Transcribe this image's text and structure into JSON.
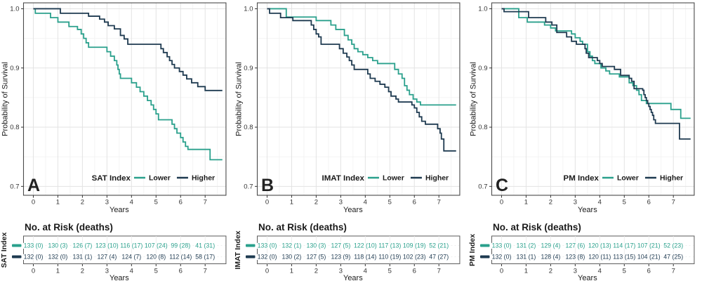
{
  "chart_data": {
    "type": "line",
    "subtype": "kaplan-meier-step",
    "xlabel": "Years",
    "ylabel": "Probability of Survival",
    "risk_table_title": "No. at Risk (deaths)",
    "x_ticks": [
      0,
      1,
      2,
      3,
      4,
      5,
      6,
      7
    ],
    "y_ticks": [
      1.0,
      0.9,
      0.8,
      0.7
    ],
    "y_minor_ticks": [
      0.95,
      0.85,
      0.75
    ],
    "x_minor_ticks": [
      0.5,
      1.5,
      2.5,
      3.5,
      4.5,
      5.5,
      6.5,
      7.5
    ],
    "xlim": [
      -0.4,
      7.85
    ],
    "ylim": [
      0.685,
      1.01
    ],
    "grid": true,
    "legend_position": "bottom-inside",
    "legend_labels": [
      "Lower",
      "Higher"
    ],
    "colors": {
      "lower": "#2aa08c",
      "higher": "#1e3a50",
      "grid_major": "#e3e3e3",
      "grid_minor": "#f1f1f1",
      "panel_border": "#4a4a4a",
      "tick_text": "#333333",
      "title_text": "#1a1a1a",
      "risk_border": "#5a5a5a",
      "risk_grid": "#e9e9e9"
    },
    "panels": [
      {
        "label": "A",
        "index_name": "SAT Index",
        "series": [
          {
            "name": "Lower",
            "color_key": "lower",
            "steps": [
              [
                0,
                1.0
              ],
              [
                0.08,
                0.9925
              ],
              [
                0.7,
                0.985
              ],
              [
                1.0,
                0.9775
              ],
              [
                1.45,
                0.97
              ],
              [
                1.8,
                0.965
              ],
              [
                1.95,
                0.9575
              ],
              [
                2.05,
                0.95
              ],
              [
                2.15,
                0.9425
              ],
              [
                2.25,
                0.935
              ],
              [
                3.0,
                0.9275
              ],
              [
                3.15,
                0.92
              ],
              [
                3.3,
                0.9125
              ],
              [
                3.4,
                0.905
              ],
              [
                3.45,
                0.8975
              ],
              [
                3.5,
                0.89
              ],
              [
                3.55,
                0.8825
              ],
              [
                4.0,
                0.875
              ],
              [
                4.2,
                0.8675
              ],
              [
                4.35,
                0.86
              ],
              [
                4.5,
                0.8525
              ],
              [
                4.65,
                0.845
              ],
              [
                4.8,
                0.8375
              ],
              [
                4.9,
                0.83
              ],
              [
                5.0,
                0.8225
              ],
              [
                5.1,
                0.8125
              ],
              [
                5.65,
                0.805
              ],
              [
                5.75,
                0.7975
              ],
              [
                5.85,
                0.79
              ],
              [
                6.0,
                0.7825
              ],
              [
                6.1,
                0.775
              ],
              [
                6.2,
                0.7675
              ],
              [
                6.3,
                0.7625
              ],
              [
                7.2,
                0.745
              ],
              [
                7.7,
                0.745
              ]
            ]
          },
          {
            "name": "Higher",
            "color_key": "higher",
            "steps": [
              [
                0,
                1.0
              ],
              [
                1.1,
                0.9925
              ],
              [
                2.25,
                0.9875
              ],
              [
                2.7,
                0.9825
              ],
              [
                2.9,
                0.9775
              ],
              [
                3.05,
                0.9715
              ],
              [
                3.3,
                0.966
              ],
              [
                3.55,
                0.955
              ],
              [
                3.7,
                0.949
              ],
              [
                3.85,
                0.94
              ],
              [
                5.2,
                0.9325
              ],
              [
                5.3,
                0.926
              ],
              [
                5.45,
                0.919
              ],
              [
                5.55,
                0.9125
              ],
              [
                5.65,
                0.906
              ],
              [
                5.75,
                0.9
              ],
              [
                5.95,
                0.894
              ],
              [
                6.1,
                0.888
              ],
              [
                6.25,
                0.8815
              ],
              [
                6.45,
                0.875
              ],
              [
                6.7,
                0.8685
              ],
              [
                7.0,
                0.862
              ],
              [
                7.7,
                0.862
              ]
            ]
          }
        ],
        "risk_rows": [
          {
            "name": "Lower",
            "color_key": "lower",
            "values": [
              "133 (0)",
              "130 (3)",
              "126 (7)",
              "123 (10)",
              "116 (17)",
              "107 (24)",
              "99 (28)",
              "41 (31)"
            ]
          },
          {
            "name": "Higher",
            "color_key": "higher",
            "values": [
              "132 (0)",
              "132 (0)",
              "131 (1)",
              "127 (4)",
              "124 (7)",
              "120 (8)",
              "112 (14)",
              "58 (17)"
            ]
          }
        ]
      },
      {
        "label": "B",
        "index_name": "IMAT Index",
        "series": [
          {
            "name": "Lower",
            "color_key": "lower",
            "steps": [
              [
                0,
                1.0
              ],
              [
                0.78,
                0.986
              ],
              [
                2.0,
                0.98
              ],
              [
                2.6,
                0.9725
              ],
              [
                2.8,
                0.965
              ],
              [
                3.15,
                0.955
              ],
              [
                3.3,
                0.9475
              ],
              [
                3.45,
                0.94
              ],
              [
                3.55,
                0.9325
              ],
              [
                3.7,
                0.9275
              ],
              [
                3.9,
                0.9225
              ],
              [
                4.1,
                0.9175
              ],
              [
                4.3,
                0.9125
              ],
              [
                4.5,
                0.9075
              ],
              [
                5.2,
                0.8975
              ],
              [
                5.35,
                0.89
              ],
              [
                5.5,
                0.8825
              ],
              [
                5.6,
                0.87
              ],
              [
                5.7,
                0.8625
              ],
              [
                5.8,
                0.855
              ],
              [
                5.95,
                0.8475
              ],
              [
                6.1,
                0.8425
              ],
              [
                6.25,
                0.8375
              ],
              [
                7.7,
                0.8375
              ]
            ]
          },
          {
            "name": "Higher",
            "color_key": "higher",
            "steps": [
              [
                0,
                1.0
              ],
              [
                0.1,
                0.9925
              ],
              [
                0.55,
                0.985
              ],
              [
                1.05,
                0.98
              ],
              [
                1.8,
                0.9725
              ],
              [
                1.9,
                0.965
              ],
              [
                2.0,
                0.9575
              ],
              [
                2.1,
                0.9525
              ],
              [
                2.2,
                0.94
              ],
              [
                2.95,
                0.9325
              ],
              [
                3.1,
                0.925
              ],
              [
                3.25,
                0.9185
              ],
              [
                3.35,
                0.9125
              ],
              [
                3.45,
                0.905
              ],
              [
                3.55,
                0.8975
              ],
              [
                4.1,
                0.89
              ],
              [
                4.2,
                0.8825
              ],
              [
                4.4,
                0.8775
              ],
              [
                4.6,
                0.8725
              ],
              [
                4.8,
                0.8675
              ],
              [
                4.95,
                0.86
              ],
              [
                5.05,
                0.8525
              ],
              [
                5.25,
                0.8475
              ],
              [
                5.35,
                0.8425
              ],
              [
                5.9,
                0.8375
              ],
              [
                6.0,
                0.8325
              ],
              [
                6.1,
                0.825
              ],
              [
                6.2,
                0.8175
              ],
              [
                6.3,
                0.81
              ],
              [
                6.45,
                0.805
              ],
              [
                6.95,
                0.7975
              ],
              [
                7.05,
                0.79
              ],
              [
                7.1,
                0.78
              ],
              [
                7.2,
                0.76
              ],
              [
                7.7,
                0.76
              ]
            ]
          }
        ],
        "risk_rows": [
          {
            "name": "Lower",
            "color_key": "lower",
            "values": [
              "133 (0)",
              "132 (1)",
              "130 (3)",
              "127 (5)",
              "122 (10)",
              "117 (13)",
              "109 (19)",
              "52 (21)"
            ]
          },
          {
            "name": "Higher",
            "color_key": "higher",
            "values": [
              "132 (0)",
              "130 (2)",
              "127 (5)",
              "123 (9)",
              "118 (14)",
              "110 (19)",
              "102 (23)",
              "47 (27)"
            ]
          }
        ]
      },
      {
        "label": "C",
        "index_name": "PM Index",
        "series": [
          {
            "name": "Lower",
            "color_key": "lower",
            "steps": [
              [
                0,
                1.0
              ],
              [
                0.7,
                0.985
              ],
              [
                1.05,
                0.9775
              ],
              [
                1.75,
                0.9725
              ],
              [
                2.0,
                0.9675
              ],
              [
                2.2,
                0.9625
              ],
              [
                2.85,
                0.9575
              ],
              [
                3.0,
                0.951
              ],
              [
                3.2,
                0.945
              ],
              [
                3.3,
                0.94
              ],
              [
                3.5,
                0.9275
              ],
              [
                3.6,
                0.92
              ],
              [
                3.7,
                0.9125
              ],
              [
                3.8,
                0.9075
              ],
              [
                4.05,
                0.9
              ],
              [
                4.25,
                0.895
              ],
              [
                4.4,
                0.89
              ],
              [
                4.8,
                0.885
              ],
              [
                5.2,
                0.875
              ],
              [
                5.35,
                0.87
              ],
              [
                5.5,
                0.8625
              ],
              [
                5.6,
                0.855
              ],
              [
                5.7,
                0.845
              ],
              [
                5.9,
                0.84
              ],
              [
                6.9,
                0.83
              ],
              [
                7.3,
                0.815
              ],
              [
                7.7,
                0.815
              ]
            ]
          },
          {
            "name": "Higher",
            "color_key": "higher",
            "steps": [
              [
                0,
                1.0
              ],
              [
                0.1,
                0.995
              ],
              [
                1.1,
                0.985
              ],
              [
                1.8,
                0.9775
              ],
              [
                2.05,
                0.9725
              ],
              [
                2.25,
                0.96
              ],
              [
                2.65,
                0.9525
              ],
              [
                2.85,
                0.945
              ],
              [
                3.05,
                0.94
              ],
              [
                3.4,
                0.9325
              ],
              [
                3.45,
                0.925
              ],
              [
                3.55,
                0.9175
              ],
              [
                3.9,
                0.9125
              ],
              [
                4.0,
                0.9075
              ],
              [
                4.1,
                0.9025
              ],
              [
                4.6,
                0.8975
              ],
              [
                4.85,
                0.8875
              ],
              [
                5.2,
                0.8825
              ],
              [
                5.3,
                0.8775
              ],
              [
                5.4,
                0.865
              ],
              [
                5.75,
                0.8625
              ],
              [
                5.8,
                0.855
              ],
              [
                5.85,
                0.85
              ],
              [
                5.9,
                0.845
              ],
              [
                5.95,
                0.84
              ],
              [
                6.0,
                0.835
              ],
              [
                6.05,
                0.83
              ],
              [
                6.1,
                0.825
              ],
              [
                6.15,
                0.82
              ],
              [
                6.2,
                0.8125
              ],
              [
                6.27,
                0.8065
              ],
              [
                7.25,
                0.78
              ],
              [
                7.7,
                0.78
              ]
            ]
          }
        ],
        "risk_rows": [
          {
            "name": "Lower",
            "color_key": "lower",
            "values": [
              "133 (0)",
              "131 (2)",
              "129 (4)",
              "127 (6)",
              "120 (13)",
              "114 (17)",
              "107 (21)",
              "52 (23)"
            ]
          },
          {
            "name": "Higher",
            "color_key": "higher",
            "values": [
              "132 (0)",
              "131 (1)",
              "128 (4)",
              "123 (8)",
              "120 (11)",
              "113 (15)",
              "104 (21)",
              "47 (25)"
            ]
          }
        ]
      }
    ]
  }
}
